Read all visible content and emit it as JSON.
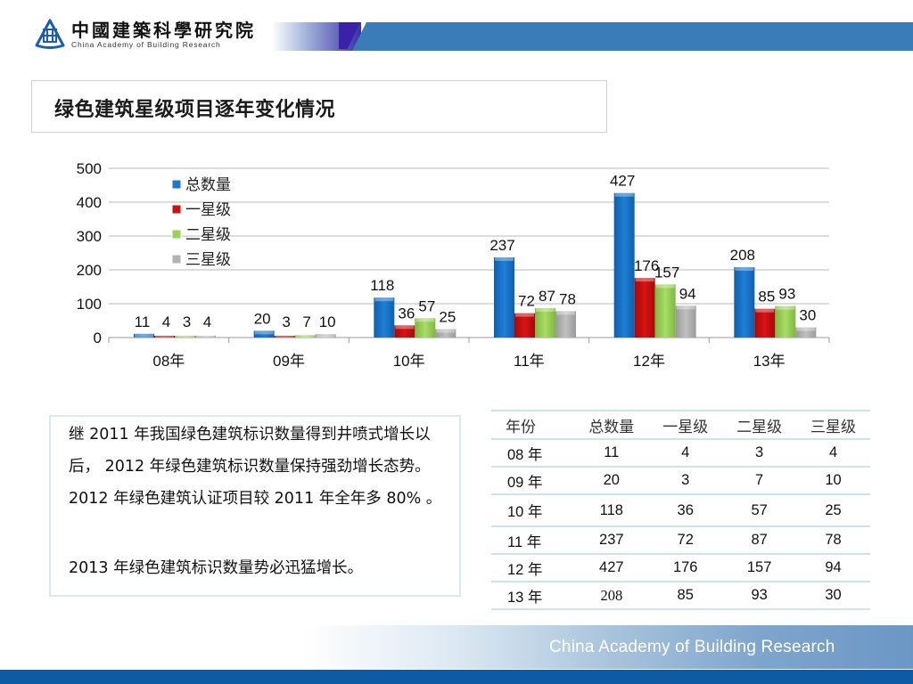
{
  "header": {
    "org_name_cn": "中國建築科學研究院",
    "org_name_en": "China Academy of Building Research",
    "logo_icon": "cabr-logo-icon"
  },
  "title": "绿色建筑星级项目逐年变化情况",
  "chart_data": {
    "type": "bar",
    "title": "",
    "xlabel": "",
    "ylabel": "",
    "ylim": [
      0,
      500
    ],
    "yticks": [
      "0",
      "100",
      "200",
      "300",
      "400",
      "500"
    ],
    "grid": true,
    "legend_position": "upper-left-inside",
    "categories": [
      "08年",
      "09年",
      "10年",
      "11年",
      "12年",
      "13年"
    ],
    "series": [
      {
        "name": "总数量",
        "color": "#1f77c9",
        "values": [
          11,
          20,
          118,
          237,
          427,
          208
        ]
      },
      {
        "name": "一星级",
        "color": "#cc1111",
        "values": [
          4,
          3,
          36,
          72,
          176,
          85
        ]
      },
      {
        "name": "二星级",
        "color": "#9bd05a",
        "values": [
          3,
          7,
          57,
          87,
          157,
          93
        ]
      },
      {
        "name": "三星级",
        "color": "#b4b4b4",
        "values": [
          4,
          10,
          25,
          78,
          94,
          30
        ]
      }
    ]
  },
  "text_box": {
    "paragraph1": "继 2011 年我国绿色建筑标识数量得到井喷式增长以后， 2012 年绿色建筑标识数量保持强劲增长态势。 2012 年绿色建筑认证项目较 2011 年全年多 80% 。",
    "paragraph2": "2013 年绿色建筑标识数量势必迅猛增长。"
  },
  "table": {
    "headers": [
      "年份",
      "总数量",
      "一星级",
      "二星级",
      "三星级"
    ],
    "rows": [
      [
        "08 年",
        "11",
        "4",
        "3",
        "4"
      ],
      [
        "09 年",
        "20",
        "3",
        "7",
        "10"
      ],
      [
        "10 年",
        "118",
        "36",
        "57",
        "25"
      ],
      [
        "11 年",
        "237",
        "72",
        "87",
        "78"
      ],
      [
        "12 年",
        "427",
        "176",
        "157",
        "94"
      ],
      [
        "13 年",
        "208",
        "85",
        "93",
        "30"
      ]
    ]
  },
  "footer": {
    "text": "China Academy of Building Research"
  }
}
